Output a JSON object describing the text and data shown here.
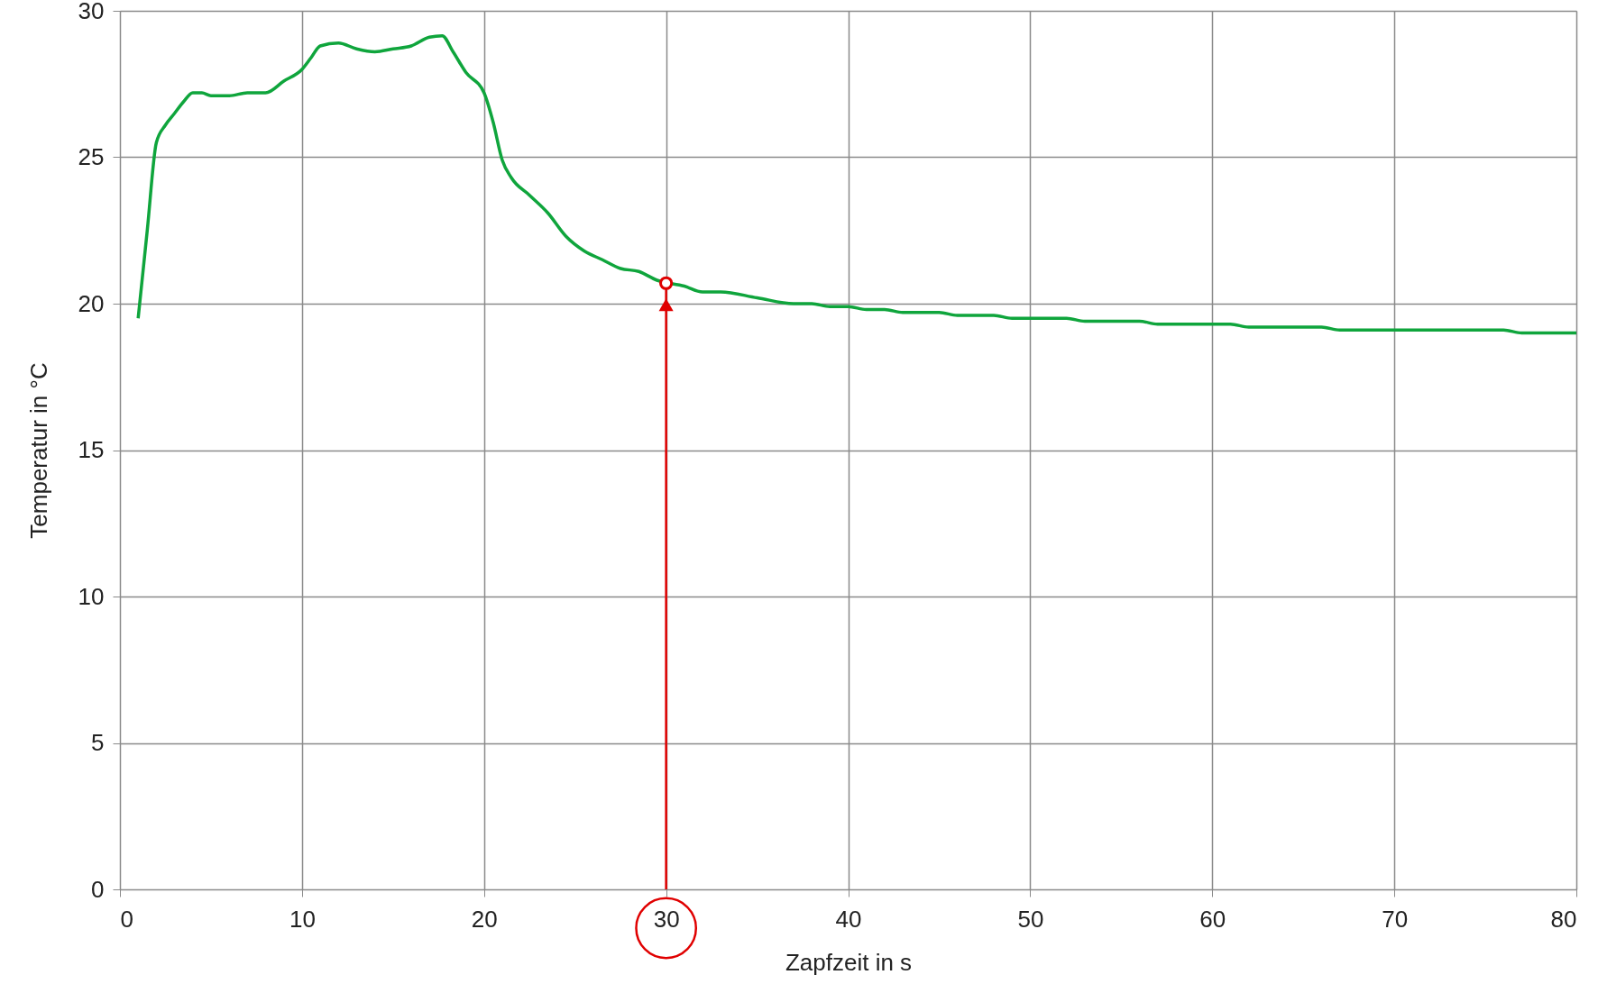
{
  "chart_data": {
    "type": "line",
    "xlabel": "Zapfzeit in s",
    "ylabel": "Temperatur  in °C",
    "xlim": [
      0,
      80
    ],
    "xticks": [
      0,
      10,
      20,
      30,
      40,
      50,
      60,
      70,
      80
    ],
    "ylim": [
      0,
      30
    ],
    "yticks": [
      0,
      5,
      10,
      15,
      20,
      25,
      30
    ],
    "grid": true,
    "line_style": "solid",
    "marker": "none",
    "series": [
      {
        "color": "#0fa53c",
        "x": [
          1,
          1.5,
          2,
          2.5,
          3,
          3.5,
          4,
          4.5,
          5,
          6,
          7,
          8,
          9,
          10,
          10.5,
          11,
          12,
          13,
          14,
          15,
          16,
          17,
          17.7,
          18.3,
          19,
          20,
          20.5,
          21,
          21.5,
          22.5,
          23.5,
          24.5,
          25.5,
          26.5,
          27.5,
          28.5,
          29.5,
          31,
          32,
          33,
          35,
          37,
          38,
          39,
          40,
          41,
          42,
          43,
          45,
          46,
          48,
          49,
          52,
          53,
          56,
          57,
          61,
          62,
          66,
          67,
          76,
          77,
          80
        ],
        "values": [
          19.5,
          22.5,
          25.5,
          26.1,
          26.5,
          26.9,
          27.2,
          27.2,
          27.1,
          27.1,
          27.2,
          27.2,
          27.6,
          28.0,
          28.4,
          28.8,
          28.9,
          28.7,
          28.6,
          28.7,
          28.8,
          29.1,
          29.15,
          28.6,
          27.9,
          27.2,
          26.2,
          24.9,
          24.3,
          23.7,
          23.1,
          22.3,
          21.8,
          21.5,
          21.2,
          21.1,
          20.8,
          20.6,
          20.4,
          20.4,
          20.2,
          20.0,
          20.0,
          19.9,
          19.9,
          19.8,
          19.8,
          19.7,
          19.7,
          19.6,
          19.6,
          19.5,
          19.5,
          19.4,
          19.4,
          19.3,
          19.3,
          19.2,
          19.2,
          19.1,
          19.1,
          19.0,
          19.0
        ]
      },
      {
        "type": "scatter",
        "marker": "circle",
        "color": "#e00000",
        "x": [
          30
        ],
        "values": [
          20.7
        ]
      }
    ],
    "ref_lines": [
      {
        "axis": "x",
        "value": 30,
        "color": "#e00000"
      }
    ]
  }
}
